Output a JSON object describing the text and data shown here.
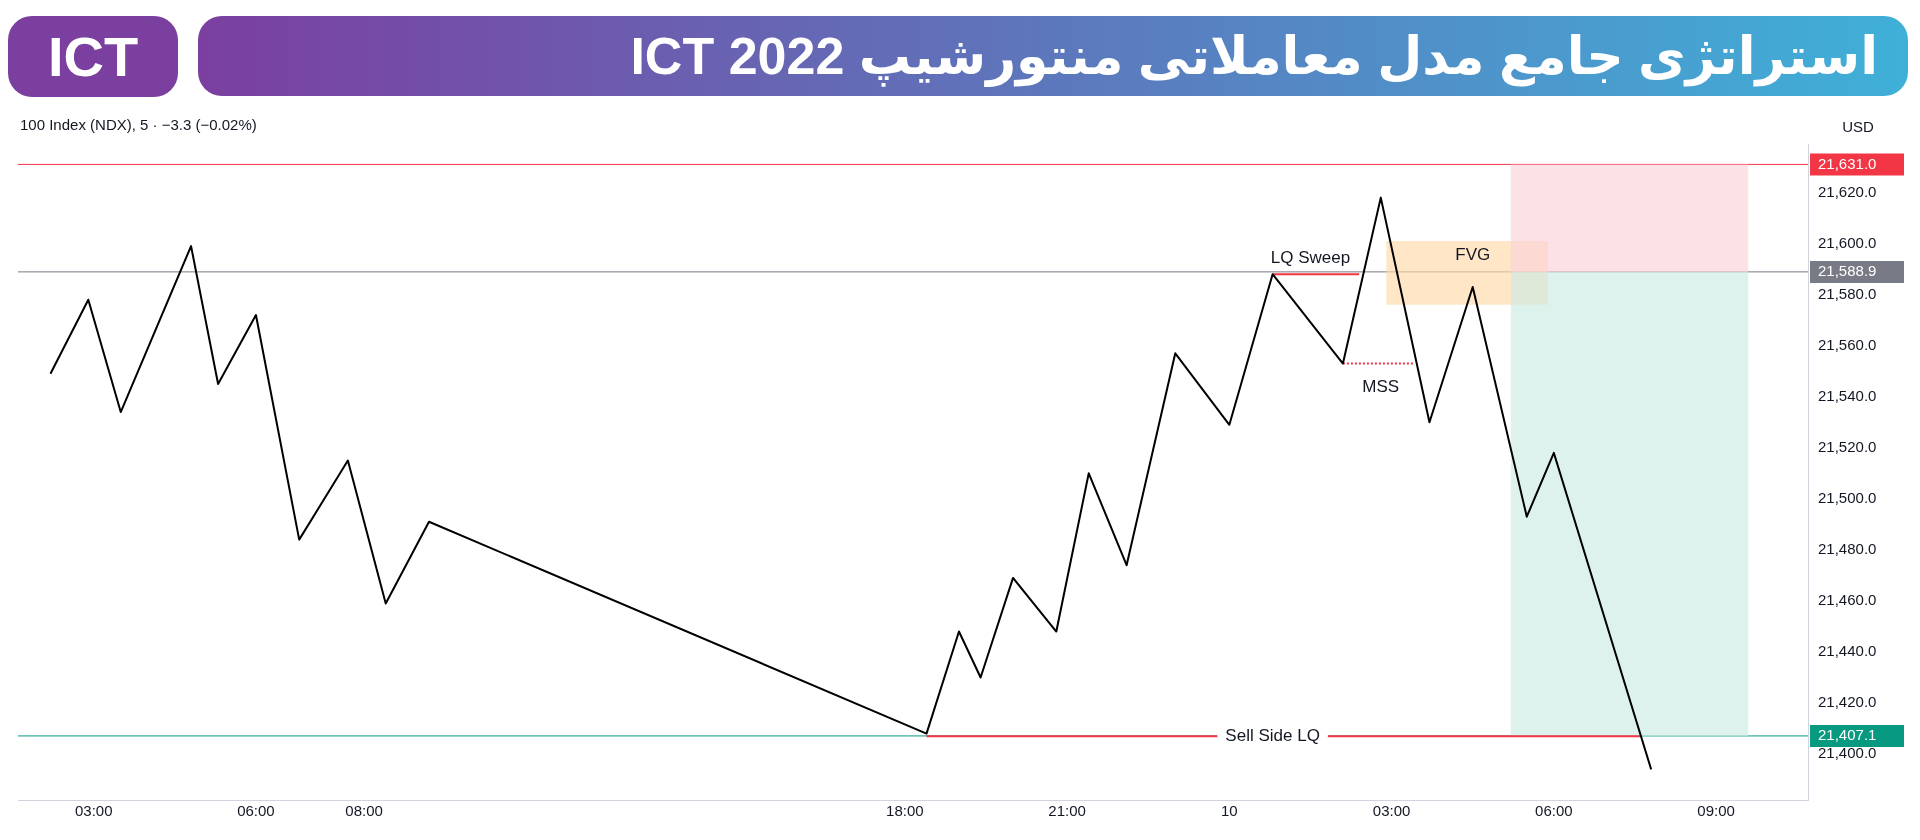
{
  "chart_data": {
    "type": "line",
    "title": "استراتژی جامع مدل معاملاتی منتورشیپ ICT 2022",
    "subtitle": "ICT",
    "annotations": [
      "100 Index (NDX), 5 · −3.3 (−0.02%)",
      "USD",
      {
        "text": "LQ Sweep",
        "x": "--12-10T01:30",
        "y": 21588
      },
      {
        "text": "FVG",
        "x": "--12-10T04:30",
        "y": 21589
      },
      {
        "text": "MSS",
        "x": "--12-10T02:48",
        "y": 21553
      },
      {
        "text": "Sell Side LQ",
        "x": "--12-10T00:48",
        "y": 21407
      }
    ],
    "xlim": [
      "--12-09T01:36",
      "--12-10T10:42"
    ],
    "xticks": [
      {
        "value": "--12-09T03:00",
        "label": "03:00"
      },
      {
        "value": "--12-09T06:00",
        "label": "06:00"
      },
      {
        "value": "--12-09T08:00",
        "label": "08:00"
      },
      {
        "value": "--12-09T18:00",
        "label": "18:00"
      },
      {
        "value": "--12-09T21:00",
        "label": "21:00"
      },
      {
        "value": "--12-10T00:00",
        "label": "10"
      },
      {
        "value": "--12-10T03:00",
        "label": "03:00"
      },
      {
        "value": "--12-10T06:00",
        "label": "06:00"
      },
      {
        "value": "--12-10T09:00",
        "label": "09:00"
      }
    ],
    "ylim": [
      21382,
      21639
    ],
    "yticks": [
      {
        "value": 21400,
        "label": "21,400.0"
      },
      {
        "value": 21420,
        "label": "21,420.0"
      },
      {
        "value": 21440,
        "label": "21,440.0"
      },
      {
        "value": 21460,
        "label": "21,460.0"
      },
      {
        "value": 21480,
        "label": "21,480.0"
      },
      {
        "value": 21500,
        "label": "21,500.0"
      },
      {
        "value": 21520,
        "label": "21,520.0"
      },
      {
        "value": 21540,
        "label": "21,540.0"
      },
      {
        "value": 21560,
        "label": "21,560.0"
      },
      {
        "value": 21580,
        "label": "21,580.0"
      },
      {
        "value": 21600,
        "label": "21,600.0"
      },
      {
        "value": 21620,
        "label": "21,620.0"
      }
    ],
    "grid": false,
    "legend": false,
    "marker": "none",
    "series": [
      {
        "type": "line",
        "color": "#fbd3d8",
        "x": [
          "--12-10T05:12",
          "--12-10T09:36"
        ],
        "values": [
          null,
          null
        ],
        "lower": [
          21588.9,
          21588.9
        ],
        "upper": [
          21631,
          21631
        ]
      },
      {
        "type": "line",
        "color": "#cdebe3",
        "x": [
          "--12-10T05:12",
          "--12-10T09:36"
        ],
        "values": [
          null,
          null
        ],
        "lower": [
          21407.1,
          21407.1
        ],
        "upper": [
          21588.9,
          21588.9
        ]
      },
      {
        "type": "line",
        "color": "#ffd9a8",
        "x": [
          "--12-10T02:54",
          "--12-10T05:54"
        ],
        "values": [
          null,
          null
        ],
        "lower": [
          21576,
          21576
        ],
        "upper": [
          21601,
          21601
        ]
      },
      {
        "type": "line",
        "color": "#000000",
        "line_style": "solid",
        "x": [
          "--12-09T02:12",
          "--12-09T02:54",
          "--12-09T03:30",
          "--12-09T04:48",
          "--12-09T05:18",
          "--12-09T06:00",
          "--12-09T06:48",
          "--12-09T07:42",
          "--12-09T08:24",
          "--12-09T09:12",
          "--12-09T18:24",
          "--12-09T19:00",
          "--12-09T19:24",
          "--12-09T20:00",
          "--12-09T20:48",
          "--12-09T21:24",
          "--12-09T22:06",
          "--12-09T23:00",
          "--12-10T00:00",
          "--12-10T00:48",
          "--12-10T02:06",
          "--12-10T02:48",
          "--12-10T03:42",
          "--12-10T04:30",
          "--12-10T05:30",
          "--12-10T06:00",
          "--12-10T07:48"
        ],
        "values": [
          21549,
          21578,
          21534,
          21599,
          21545,
          21572,
          21484,
          21515,
          21459,
          21491,
          21408,
          21448,
          21430,
          21469,
          21448,
          21510,
          21474,
          21557,
          21529,
          21588,
          21553,
          21618,
          21530,
          21583,
          21493,
          21518,
          21394
        ]
      },
      {
        "type": "line",
        "color": "#f23645",
        "line_style": "solid",
        "x": [
          "--12-10T00:48",
          "--12-10T02:24"
        ],
        "values": [
          21588,
          21588
        ]
      },
      {
        "type": "line",
        "color": "#f23645",
        "line_style": "dotted",
        "x": [
          "--12-10T02:06",
          "--12-10T03:24"
        ],
        "values": [
          21553,
          21553
        ]
      },
      {
        "type": "line",
        "color": "#f23645",
        "line_style": "solid",
        "x": [
          "--12-09T18:24",
          "--12-10T07:36"
        ],
        "values": [
          21407,
          21407
        ]
      }
    ],
    "ref_lines": [
      {
        "axis": "y",
        "value": 21631,
        "label": "21,631.0",
        "color": "#f23645"
      },
      {
        "axis": "y",
        "value": 21588.9,
        "label": "21,588.9",
        "color": "#787b86"
      },
      {
        "axis": "y",
        "value": 21407.1,
        "label": "21,407.1",
        "color": "#089981"
      }
    ]
  }
}
